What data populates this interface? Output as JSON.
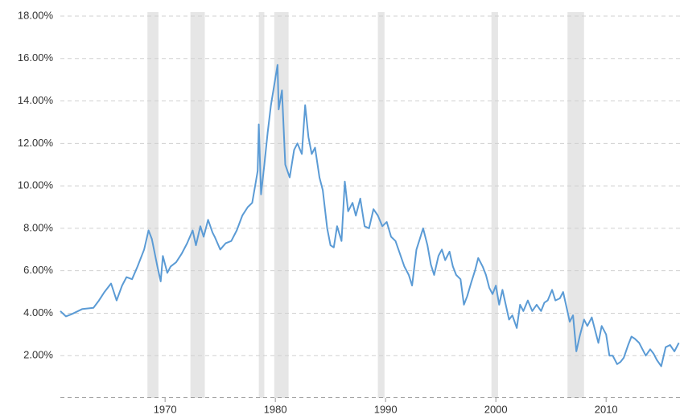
{
  "chart_data": {
    "type": "line",
    "color": "#5b9bd5",
    "shade_color": "#e6e6e6",
    "grid": true,
    "xlim": [
      1960.5,
      2016.7
    ],
    "xticks": [
      1970,
      1980,
      1990,
      2000,
      2010
    ],
    "ylim": [
      0,
      18
    ],
    "yticks": [
      {
        "value": 2,
        "label": "2.00%"
      },
      {
        "value": 4,
        "label": "4.00%"
      },
      {
        "value": 6,
        "label": "6.00%"
      },
      {
        "value": 8,
        "label": "8.00%"
      },
      {
        "value": 10,
        "label": "10.00%"
      },
      {
        "value": 12,
        "label": "12.00%"
      },
      {
        "value": 14,
        "label": "14.00%"
      },
      {
        "value": 16,
        "label": "16.00%"
      },
      {
        "value": 18,
        "label": "18.00%"
      }
    ],
    "shaded_periods": [
      [
        1968.4,
        1969.4
      ],
      [
        1972.3,
        1973.6
      ],
      [
        1978.5,
        1979.0
      ],
      [
        1979.9,
        1981.2
      ],
      [
        1989.3,
        1989.9
      ],
      [
        1999.6,
        2000.2
      ],
      [
        2006.5,
        2008.0
      ]
    ],
    "x": [
      1960.5,
      1961.0,
      1961.5,
      1962.5,
      1963.5,
      1964.0,
      1964.5,
      1965.1,
      1965.6,
      1966.1,
      1966.5,
      1967.0,
      1967.5,
      1968.1,
      1968.5,
      1968.8,
      1969.3,
      1969.6,
      1969.8,
      1970.2,
      1970.5,
      1971.0,
      1971.5,
      1972.0,
      1972.5,
      1972.8,
      1973.2,
      1973.5,
      1973.9,
      1974.3,
      1974.5,
      1975.0,
      1975.5,
      1976.0,
      1976.5,
      1977.0,
      1977.5,
      1977.9,
      1978.2,
      1978.4,
      1978.5,
      1978.7,
      1979.0,
      1979.3,
      1979.6,
      1980.2,
      1980.3,
      1980.6,
      1980.9,
      1981.3,
      1981.7,
      1982.0,
      1982.4,
      1982.7,
      1983.0,
      1983.3,
      1983.6,
      1984.0,
      1984.3,
      1984.7,
      1985.0,
      1985.3,
      1985.6,
      1986.0,
      1986.3,
      1986.6,
      1987.0,
      1987.3,
      1987.7,
      1988.1,
      1988.5,
      1988.9,
      1989.3,
      1989.7,
      1990.1,
      1990.5,
      1990.9,
      1991.3,
      1991.7,
      1992.1,
      1992.4,
      1992.8,
      1993.1,
      1993.4,
      1993.8,
      1994.1,
      1994.4,
      1994.8,
      1995.1,
      1995.4,
      1995.8,
      1996.1,
      1996.4,
      1996.8,
      1997.1,
      1997.4,
      1997.8,
      1998.1,
      1998.4,
      1998.8,
      1999.1,
      1999.4,
      1999.7,
      2000.0,
      2000.3,
      2000.6,
      2000.9,
      2001.2,
      2001.5,
      2001.9,
      2002.2,
      2002.5,
      2002.9,
      2003.3,
      2003.7,
      2004.1,
      2004.4,
      2004.7,
      2005.1,
      2005.4,
      2005.8,
      2006.1,
      2006.4,
      2006.7,
      2007.0,
      2007.3,
      2007.6,
      2008.0,
      2008.3,
      2008.7,
      2009.0,
      2009.3,
      2009.6,
      2010.0,
      2010.3,
      2010.6,
      2011.0,
      2011.3,
      2011.6,
      2012.0,
      2012.3,
      2012.6,
      2013.0,
      2013.3,
      2013.6,
      2014.0,
      2014.3,
      2014.6,
      2015.0,
      2015.4,
      2015.8,
      2016.2,
      2016.6
    ],
    "values": [
      4.1,
      3.85,
      3.95,
      4.2,
      4.25,
      4.6,
      5.0,
      5.4,
      4.6,
      5.3,
      5.7,
      5.6,
      6.2,
      7.0,
      7.9,
      7.5,
      6.2,
      5.5,
      6.7,
      5.9,
      6.2,
      6.4,
      6.8,
      7.3,
      7.9,
      7.2,
      8.1,
      7.6,
      8.4,
      7.8,
      7.6,
      7.0,
      7.3,
      7.4,
      7.9,
      8.6,
      9.0,
      9.2,
      10.1,
      10.7,
      12.9,
      9.6,
      11.0,
      12.5,
      13.8,
      15.7,
      13.6,
      14.5,
      11.0,
      10.4,
      11.7,
      12.0,
      11.5,
      13.8,
      12.3,
      11.5,
      11.8,
      10.4,
      9.8,
      8.0,
      7.2,
      7.1,
      8.1,
      7.4,
      10.2,
      8.8,
      9.2,
      8.6,
      9.4,
      8.1,
      8.0,
      8.9,
      8.6,
      8.1,
      8.3,
      7.6,
      7.4,
      6.8,
      6.2,
      5.8,
      5.3,
      7.0,
      7.5,
      8.0,
      7.2,
      6.3,
      5.8,
      6.7,
      7.0,
      6.5,
      6.9,
      6.2,
      5.8,
      5.6,
      4.4,
      4.8,
      5.5,
      6.0,
      6.6,
      6.2,
      5.8,
      5.2,
      4.9,
      5.3,
      4.4,
      5.1,
      4.4,
      3.7,
      3.9,
      3.3,
      4.4,
      4.1,
      4.6,
      4.1,
      4.4,
      4.1,
      4.5,
      4.6,
      5.1,
      4.6,
      4.7,
      5.0,
      4.3,
      3.6,
      3.9,
      2.2,
      2.9,
      3.7,
      3.4,
      3.8,
      3.2,
      2.6,
      3.4,
      3.0,
      2.0,
      2.0,
      1.6,
      1.7,
      1.9,
      2.5,
      2.9,
      2.8,
      2.6,
      2.3,
      2.0,
      2.3,
      2.1,
      1.8,
      1.5,
      2.4,
      2.5,
      2.2,
      2.6
    ]
  }
}
